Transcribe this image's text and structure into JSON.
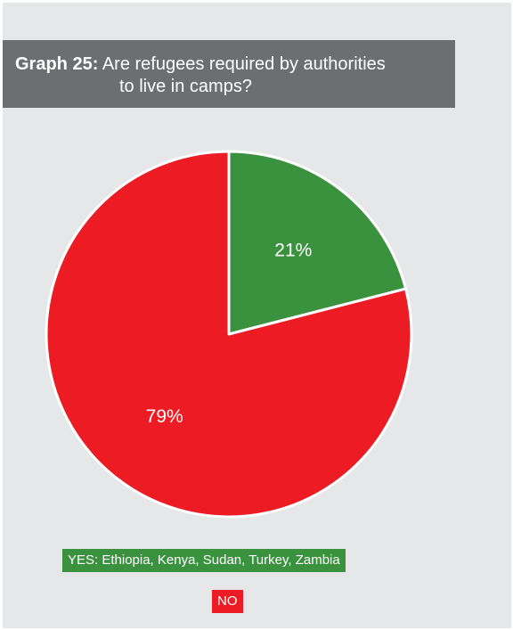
{
  "title": {
    "prefix": "Graph 25:",
    "line1": "Are refugees required by authorities",
    "line2": "to live in camps?"
  },
  "chart_data": {
    "type": "pie",
    "slices": [
      {
        "label": "YES: Ethiopia, Kenya, Sudan, Turkey, Zambia",
        "value": 21,
        "display": "21%",
        "color": "#3a923e"
      },
      {
        "label": "NO",
        "value": 79,
        "display": "79%",
        "color": "#ed1c24"
      }
    ]
  }
}
